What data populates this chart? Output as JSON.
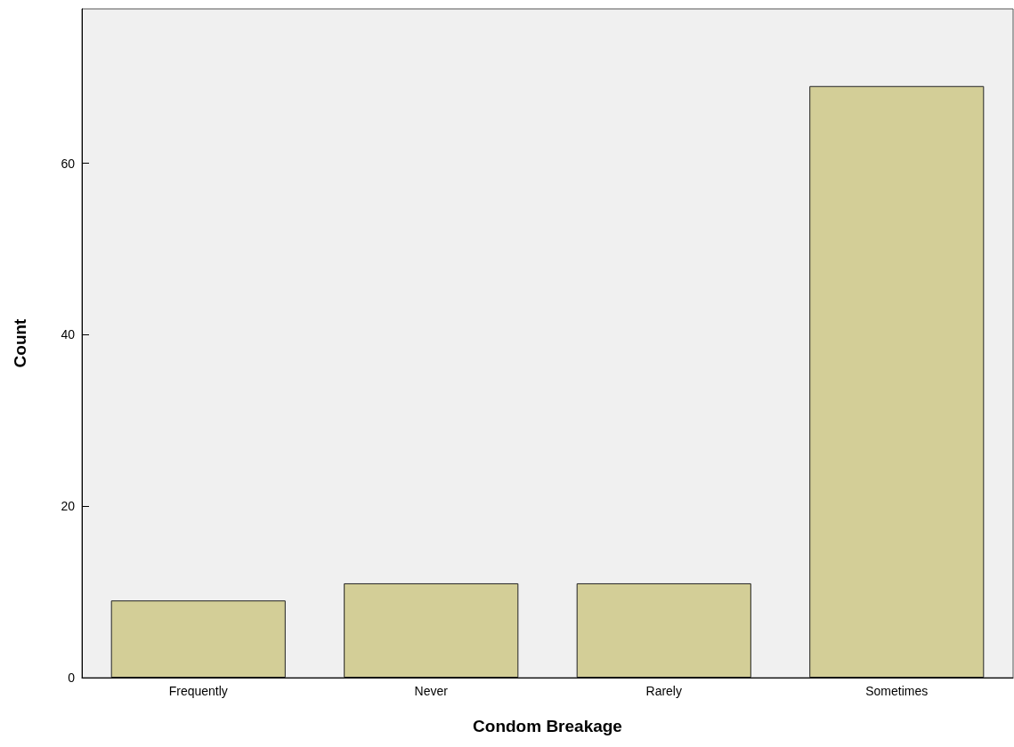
{
  "chart_data": {
    "type": "bar",
    "xlabel": "Condom Breakage",
    "ylabel": "Count",
    "categories": [
      "Frequently",
      "Never",
      "Rarely",
      "Sometimes"
    ],
    "values": [
      9,
      11,
      11,
      69
    ],
    "color": "#d3ce97",
    "ylim": [
      0,
      78
    ],
    "yticks": [
      0,
      20,
      40,
      60
    ],
    "grid": false
  }
}
